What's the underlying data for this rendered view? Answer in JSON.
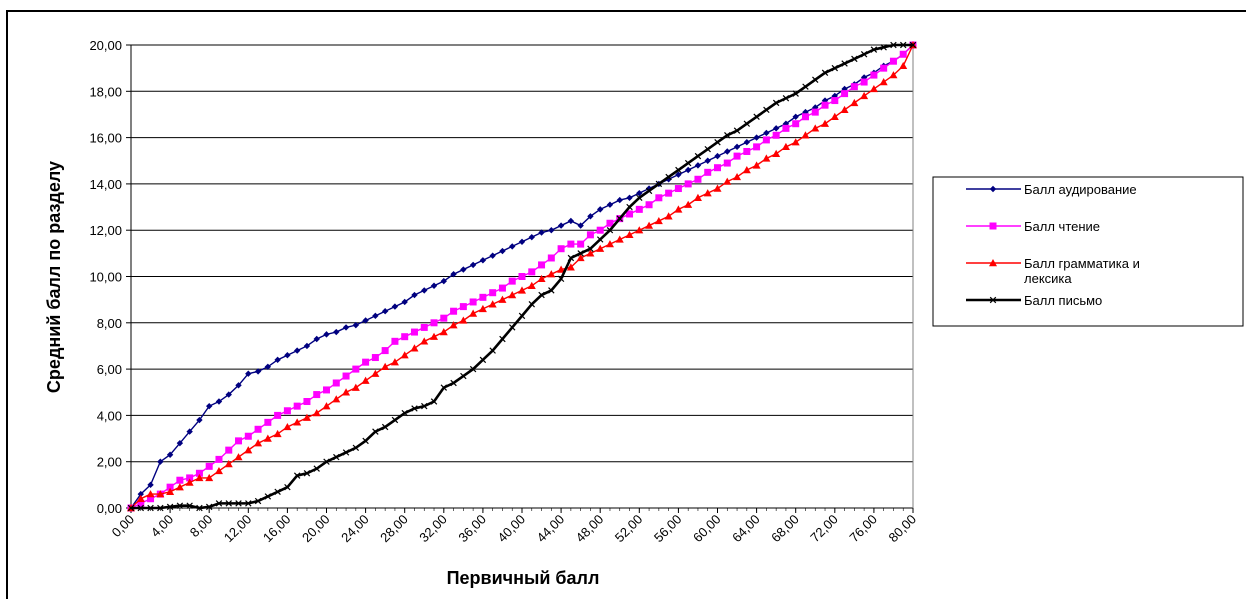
{
  "chart_data": {
    "type": "line",
    "xlabel": "Первичный балл",
    "ylabel": "Средний балл по разделу",
    "xlim": [
      0,
      80
    ],
    "ylim": [
      0,
      20
    ],
    "grid": true,
    "legend_position": "right",
    "x_ticks": [
      "0,00",
      "4,00",
      "8,00",
      "12,00",
      "16,00",
      "20,00",
      "24,00",
      "28,00",
      "32,00",
      "36,00",
      "40,00",
      "44,00",
      "48,00",
      "52,00",
      "56,00",
      "60,00",
      "64,00",
      "68,00",
      "72,00",
      "76,00",
      "80,00"
    ],
    "y_ticks": [
      "0,00",
      "2,00",
      "4,00",
      "6,00",
      "8,00",
      "10,00",
      "12,00",
      "14,00",
      "16,00",
      "18,00",
      "20,00"
    ],
    "series": [
      {
        "name": "Балл аудирование",
        "color": "#000080",
        "marker": "diamond",
        "points": [
          [
            0,
            0
          ],
          [
            1,
            0.6
          ],
          [
            2,
            1.0
          ],
          [
            3,
            2.0
          ],
          [
            4,
            2.3
          ],
          [
            5,
            2.8
          ],
          [
            6,
            3.3
          ],
          [
            7,
            3.8
          ],
          [
            8,
            4.4
          ],
          [
            9,
            4.6
          ],
          [
            10,
            4.9
          ],
          [
            11,
            5.3
          ],
          [
            12,
            5.8
          ],
          [
            13,
            5.9
          ],
          [
            14,
            6.1
          ],
          [
            15,
            6.4
          ],
          [
            16,
            6.6
          ],
          [
            17,
            6.8
          ],
          [
            18,
            7.0
          ],
          [
            19,
            7.3
          ],
          [
            20,
            7.5
          ],
          [
            21,
            7.6
          ],
          [
            22,
            7.8
          ],
          [
            23,
            7.9
          ],
          [
            24,
            8.1
          ],
          [
            25,
            8.3
          ],
          [
            26,
            8.5
          ],
          [
            27,
            8.7
          ],
          [
            28,
            8.9
          ],
          [
            29,
            9.2
          ],
          [
            30,
            9.4
          ],
          [
            31,
            9.6
          ],
          [
            32,
            9.8
          ],
          [
            33,
            10.1
          ],
          [
            34,
            10.3
          ],
          [
            35,
            10.5
          ],
          [
            36,
            10.7
          ],
          [
            37,
            10.9
          ],
          [
            38,
            11.1
          ],
          [
            39,
            11.3
          ],
          [
            40,
            11.5
          ],
          [
            41,
            11.7
          ],
          [
            42,
            11.9
          ],
          [
            43,
            12.0
          ],
          [
            44,
            12.2
          ],
          [
            45,
            12.4
          ],
          [
            46,
            12.2
          ],
          [
            47,
            12.6
          ],
          [
            48,
            12.9
          ],
          [
            49,
            13.1
          ],
          [
            50,
            13.3
          ],
          [
            51,
            13.4
          ],
          [
            52,
            13.6
          ],
          [
            53,
            13.8
          ],
          [
            54,
            14.0
          ],
          [
            55,
            14.2
          ],
          [
            56,
            14.4
          ],
          [
            57,
            14.6
          ],
          [
            58,
            14.8
          ],
          [
            59,
            15.0
          ],
          [
            60,
            15.2
          ],
          [
            61,
            15.4
          ],
          [
            62,
            15.6
          ],
          [
            63,
            15.8
          ],
          [
            64,
            16.0
          ],
          [
            65,
            16.2
          ],
          [
            66,
            16.4
          ],
          [
            67,
            16.6
          ],
          [
            68,
            16.9
          ],
          [
            69,
            17.1
          ],
          [
            70,
            17.3
          ],
          [
            71,
            17.6
          ],
          [
            72,
            17.8
          ],
          [
            73,
            18.1
          ],
          [
            74,
            18.3
          ],
          [
            75,
            18.6
          ],
          [
            76,
            18.8
          ],
          [
            77,
            19.1
          ],
          [
            78,
            19.3
          ],
          [
            79,
            19.6
          ],
          [
            80,
            20.0
          ]
        ]
      },
      {
        "name": "Балл чтение",
        "color": "#FF00FF",
        "marker": "square",
        "points": [
          [
            0,
            0
          ],
          [
            1,
            0.2
          ],
          [
            2,
            0.4
          ],
          [
            3,
            0.6
          ],
          [
            4,
            0.9
          ],
          [
            5,
            1.2
          ],
          [
            6,
            1.3
          ],
          [
            7,
            1.5
          ],
          [
            8,
            1.8
          ],
          [
            9,
            2.1
          ],
          [
            10,
            2.5
          ],
          [
            11,
            2.9
          ],
          [
            12,
            3.1
          ],
          [
            13,
            3.4
          ],
          [
            14,
            3.7
          ],
          [
            15,
            4.0
          ],
          [
            16,
            4.2
          ],
          [
            17,
            4.4
          ],
          [
            18,
            4.6
          ],
          [
            19,
            4.9
          ],
          [
            20,
            5.1
          ],
          [
            21,
            5.4
          ],
          [
            22,
            5.7
          ],
          [
            23,
            6.0
          ],
          [
            24,
            6.3
          ],
          [
            25,
            6.5
          ],
          [
            26,
            6.8
          ],
          [
            27,
            7.2
          ],
          [
            28,
            7.4
          ],
          [
            29,
            7.6
          ],
          [
            30,
            7.8
          ],
          [
            31,
            8.0
          ],
          [
            32,
            8.2
          ],
          [
            33,
            8.5
          ],
          [
            34,
            8.7
          ],
          [
            35,
            8.9
          ],
          [
            36,
            9.1
          ],
          [
            37,
            9.3
          ],
          [
            38,
            9.5
          ],
          [
            39,
            9.8
          ],
          [
            40,
            10.0
          ],
          [
            41,
            10.2
          ],
          [
            42,
            10.5
          ],
          [
            43,
            10.8
          ],
          [
            44,
            11.2
          ],
          [
            45,
            11.4
          ],
          [
            46,
            11.4
          ],
          [
            47,
            11.8
          ],
          [
            48,
            12.0
          ],
          [
            49,
            12.3
          ],
          [
            50,
            12.5
          ],
          [
            51,
            12.7
          ],
          [
            52,
            12.9
          ],
          [
            53,
            13.1
          ],
          [
            54,
            13.4
          ],
          [
            55,
            13.6
          ],
          [
            56,
            13.8
          ],
          [
            57,
            14.0
          ],
          [
            58,
            14.2
          ],
          [
            59,
            14.5
          ],
          [
            60,
            14.7
          ],
          [
            61,
            14.9
          ],
          [
            62,
            15.2
          ],
          [
            63,
            15.4
          ],
          [
            64,
            15.6
          ],
          [
            65,
            15.9
          ],
          [
            66,
            16.1
          ],
          [
            67,
            16.4
          ],
          [
            68,
            16.6
          ],
          [
            69,
            16.9
          ],
          [
            70,
            17.1
          ],
          [
            71,
            17.4
          ],
          [
            72,
            17.6
          ],
          [
            73,
            17.9
          ],
          [
            74,
            18.2
          ],
          [
            75,
            18.4
          ],
          [
            76,
            18.7
          ],
          [
            77,
            19.0
          ],
          [
            78,
            19.3
          ],
          [
            79,
            19.6
          ],
          [
            80,
            20.0
          ]
        ]
      },
      {
        "name": "Балл грамматика и лексика",
        "color": "#FF0000",
        "marker": "triangle",
        "points": [
          [
            0,
            0
          ],
          [
            1,
            0.4
          ],
          [
            2,
            0.6
          ],
          [
            3,
            0.6
          ],
          [
            4,
            0.7
          ],
          [
            5,
            0.9
          ],
          [
            6,
            1.1
          ],
          [
            7,
            1.3
          ],
          [
            8,
            1.3
          ],
          [
            9,
            1.6
          ],
          [
            10,
            1.9
          ],
          [
            11,
            2.2
          ],
          [
            12,
            2.5
          ],
          [
            13,
            2.8
          ],
          [
            14,
            3.0
          ],
          [
            15,
            3.2
          ],
          [
            16,
            3.5
          ],
          [
            17,
            3.7
          ],
          [
            18,
            3.9
          ],
          [
            19,
            4.1
          ],
          [
            20,
            4.4
          ],
          [
            21,
            4.7
          ],
          [
            22,
            5.0
          ],
          [
            23,
            5.2
          ],
          [
            24,
            5.5
          ],
          [
            25,
            5.8
          ],
          [
            26,
            6.1
          ],
          [
            27,
            6.3
          ],
          [
            28,
            6.6
          ],
          [
            29,
            6.9
          ],
          [
            30,
            7.2
          ],
          [
            31,
            7.4
          ],
          [
            32,
            7.6
          ],
          [
            33,
            7.9
          ],
          [
            34,
            8.1
          ],
          [
            35,
            8.4
          ],
          [
            36,
            8.6
          ],
          [
            37,
            8.8
          ],
          [
            38,
            9.0
          ],
          [
            39,
            9.2
          ],
          [
            40,
            9.4
          ],
          [
            41,
            9.6
          ],
          [
            42,
            9.9
          ],
          [
            43,
            10.1
          ],
          [
            44,
            10.3
          ],
          [
            45,
            10.4
          ],
          [
            46,
            10.8
          ],
          [
            47,
            11.0
          ],
          [
            48,
            11.2
          ],
          [
            49,
            11.4
          ],
          [
            50,
            11.6
          ],
          [
            51,
            11.8
          ],
          [
            52,
            12.0
          ],
          [
            53,
            12.2
          ],
          [
            54,
            12.4
          ],
          [
            55,
            12.6
          ],
          [
            56,
            12.9
          ],
          [
            57,
            13.1
          ],
          [
            58,
            13.4
          ],
          [
            59,
            13.6
          ],
          [
            60,
            13.8
          ],
          [
            61,
            14.1
          ],
          [
            62,
            14.3
          ],
          [
            63,
            14.6
          ],
          [
            64,
            14.8
          ],
          [
            65,
            15.1
          ],
          [
            66,
            15.3
          ],
          [
            67,
            15.6
          ],
          [
            68,
            15.8
          ],
          [
            69,
            16.1
          ],
          [
            70,
            16.4
          ],
          [
            71,
            16.6
          ],
          [
            72,
            16.9
          ],
          [
            73,
            17.2
          ],
          [
            74,
            17.5
          ],
          [
            75,
            17.8
          ],
          [
            76,
            18.1
          ],
          [
            77,
            18.4
          ],
          [
            78,
            18.7
          ],
          [
            79,
            19.1
          ],
          [
            80,
            20.0
          ]
        ]
      },
      {
        "name": "Балл письмо",
        "color": "#000000",
        "marker": "x",
        "points": [
          [
            0,
            0
          ],
          [
            1,
            0.0
          ],
          [
            2,
            0.0
          ],
          [
            3,
            0.0
          ],
          [
            4,
            0.05
          ],
          [
            5,
            0.1
          ],
          [
            6,
            0.1
          ],
          [
            7,
            0.0
          ],
          [
            8,
            0.05
          ],
          [
            9,
            0.2
          ],
          [
            10,
            0.2
          ],
          [
            11,
            0.2
          ],
          [
            12,
            0.2
          ],
          [
            13,
            0.3
          ],
          [
            14,
            0.5
          ],
          [
            15,
            0.7
          ],
          [
            16,
            0.9
          ],
          [
            17,
            1.4
          ],
          [
            18,
            1.5
          ],
          [
            19,
            1.7
          ],
          [
            20,
            2.0
          ],
          [
            21,
            2.2
          ],
          [
            22,
            2.4
          ],
          [
            23,
            2.6
          ],
          [
            24,
            2.9
          ],
          [
            25,
            3.3
          ],
          [
            26,
            3.5
          ],
          [
            27,
            3.8
          ],
          [
            28,
            4.1
          ],
          [
            29,
            4.3
          ],
          [
            30,
            4.4
          ],
          [
            31,
            4.6
          ],
          [
            32,
            5.2
          ],
          [
            33,
            5.4
          ],
          [
            34,
            5.7
          ],
          [
            35,
            6.0
          ],
          [
            36,
            6.4
          ],
          [
            37,
            6.8
          ],
          [
            38,
            7.3
          ],
          [
            39,
            7.8
          ],
          [
            40,
            8.3
          ],
          [
            41,
            8.8
          ],
          [
            42,
            9.2
          ],
          [
            43,
            9.4
          ],
          [
            44,
            9.9
          ],
          [
            45,
            10.8
          ],
          [
            46,
            11.0
          ],
          [
            47,
            11.2
          ],
          [
            48,
            11.6
          ],
          [
            49,
            12.0
          ],
          [
            50,
            12.5
          ],
          [
            51,
            13.0
          ],
          [
            52,
            13.4
          ],
          [
            53,
            13.7
          ],
          [
            54,
            14.0
          ],
          [
            55,
            14.3
          ],
          [
            56,
            14.6
          ],
          [
            57,
            14.9
          ],
          [
            58,
            15.2
          ],
          [
            59,
            15.5
          ],
          [
            60,
            15.8
          ],
          [
            61,
            16.1
          ],
          [
            62,
            16.3
          ],
          [
            63,
            16.6
          ],
          [
            64,
            16.9
          ],
          [
            65,
            17.2
          ],
          [
            66,
            17.5
          ],
          [
            67,
            17.7
          ],
          [
            68,
            17.9
          ],
          [
            69,
            18.2
          ],
          [
            70,
            18.5
          ],
          [
            71,
            18.8
          ],
          [
            72,
            19.0
          ],
          [
            73,
            19.2
          ],
          [
            74,
            19.4
          ],
          [
            75,
            19.6
          ],
          [
            76,
            19.8
          ],
          [
            77,
            19.9
          ],
          [
            78,
            20.0
          ],
          [
            79,
            20.0
          ],
          [
            80,
            20.0
          ]
        ]
      }
    ]
  }
}
